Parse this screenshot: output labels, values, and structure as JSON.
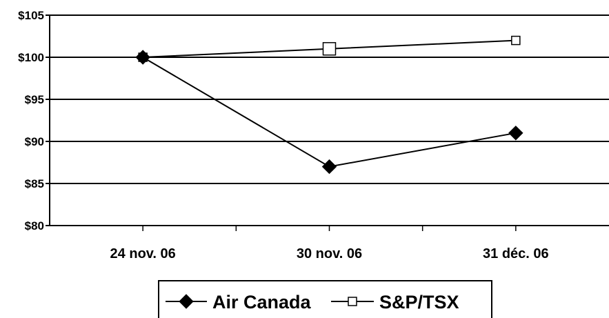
{
  "chart_data": {
    "type": "line",
    "categories": [
      "24 nov. 06",
      "30 nov. 06",
      "31 déc. 06"
    ],
    "series": [
      {
        "name": "Air Canada",
        "values": [
          100,
          87,
          91
        ],
        "marker": "diamond-filled",
        "color": "#000000"
      },
      {
        "name": "S&P/TSX",
        "values": [
          100,
          101,
          102
        ],
        "marker": "square-open",
        "color": "#000000"
      }
    ],
    "yticks": [
      "$80",
      "$85",
      "$90",
      "$95",
      "$100",
      "$105"
    ],
    "ylim": [
      80,
      105
    ],
    "grid": true,
    "legend": "bottom",
    "title": "",
    "xlabel": "",
    "ylabel": ""
  }
}
